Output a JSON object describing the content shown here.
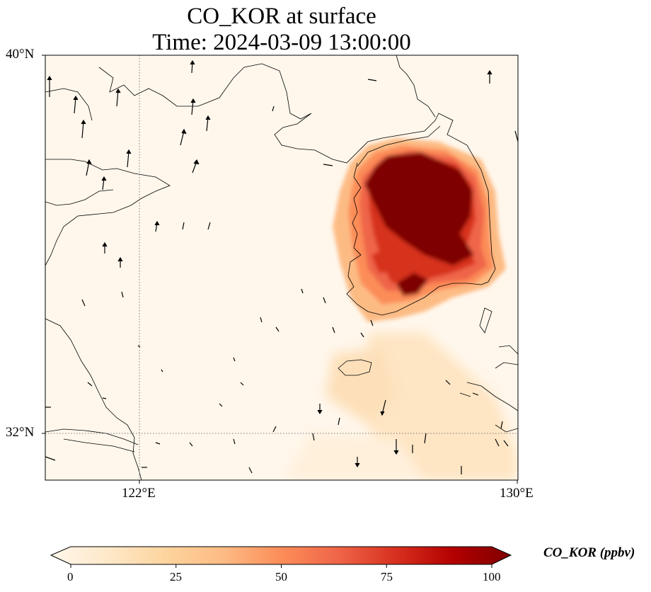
{
  "title": {
    "line1": "CO_KOR at surface",
    "line2": "Time: 2024-03-09 13:00:00"
  },
  "axes": {
    "lat_labels": [
      "40°N",
      "32°N"
    ],
    "lon_labels": [
      "122°E",
      "130°E"
    ],
    "lat_range": [
      31,
      40
    ],
    "lon_range": [
      120,
      130
    ],
    "gridlines": {
      "lat": 32,
      "lon": 122,
      "style": "dotted"
    }
  },
  "colorbar": {
    "label": "CO_KOR (ppbv)",
    "ticks": [
      "0",
      "25",
      "50",
      "75",
      "100"
    ],
    "range": [
      0,
      100
    ],
    "extend": "both",
    "colormap": "OrRd",
    "colors": [
      "#fff7ec",
      "#fee8c8",
      "#fdd49e",
      "#fdbb84",
      "#fc8d59",
      "#ef6548",
      "#d7301f",
      "#b30000",
      "#7f0000"
    ]
  },
  "map": {
    "background": "#fff7ec",
    "coastline_color": "#000000",
    "features": [
      "China coast",
      "Shandong peninsula",
      "Liaodong peninsula",
      "Korean peninsula",
      "Jeju island",
      "Kyushu (Japan)"
    ]
  },
  "chart_data": {
    "type": "heatmap",
    "title": "CO_KOR at surface",
    "subtitle": "Time: 2024-03-09 13:00:00",
    "variable": "CO_KOR",
    "units": "ppbv",
    "value_range": [
      0,
      100
    ],
    "plumes": [
      {
        "region": "Northern South Korea (Seoul area)",
        "lon": 127.2,
        "lat": 37.4,
        "value": 100
      },
      {
        "region": "Central South Korea",
        "lon": 128.0,
        "lat": 36.4,
        "value": 100
      },
      {
        "region": "Southwest Korea",
        "lon": 126.9,
        "lat": 35.0,
        "value": 75
      },
      {
        "region": "Southeast Korea (Busan area)",
        "lon": 128.8,
        "lat": 35.5,
        "value": 90
      },
      {
        "region": "Jeju / outflow south",
        "lon": 127.5,
        "lat": 33.0,
        "value": 15
      },
      {
        "region": "Outflow toward East China Sea",
        "lon": 128.0,
        "lat": 31.8,
        "value": 10
      }
    ],
    "wind_vectors": "sparse arrows, predominantly northward over the Yellow Sea and southeastward over the East China Sea"
  }
}
